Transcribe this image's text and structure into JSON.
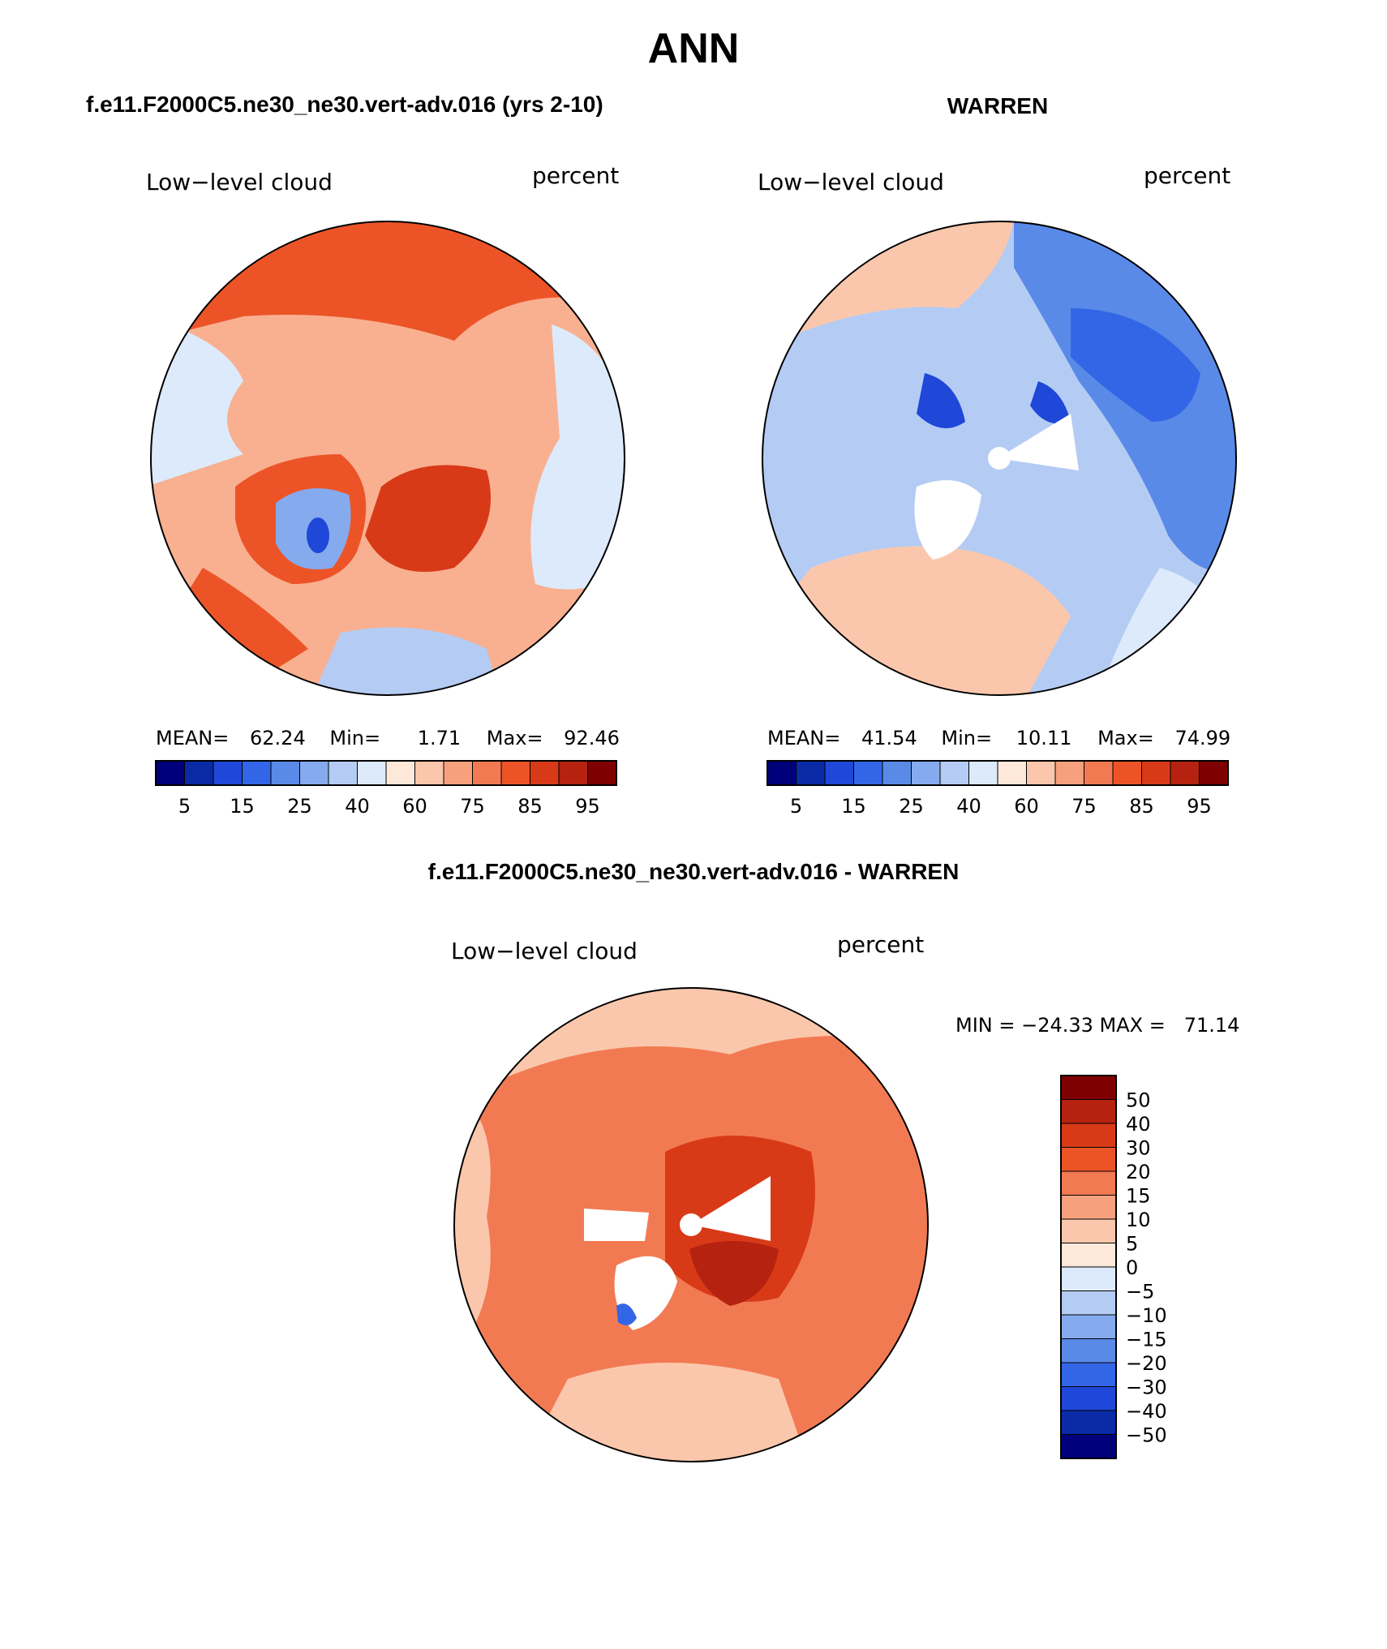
{
  "figure_title": "ANN",
  "panels": [
    {
      "title": "f.e11.F2000C5.ne30_ne30.vert-adv.016 (yrs 2-10)",
      "variable": "Low−level cloud",
      "units": "percent",
      "stats": {
        "mean_label": "MEAN=",
        "mean": "62.24",
        "min_label": "Min=",
        "min": "1.71",
        "max_label": "Max=",
        "max": "92.46"
      }
    },
    {
      "title": "WARREN",
      "variable": "Low−level cloud",
      "units": "percent",
      "stats": {
        "mean_label": "MEAN=",
        "mean": "41.54",
        "min_label": "Min=",
        "min": "10.11",
        "max_label": "Max=",
        "max": "74.99"
      }
    },
    {
      "title": "f.e11.F2000C5.ne30_ne30.vert-adv.016 - WARREN",
      "variable": "Low−level cloud",
      "units": "percent",
      "stats_text": "MIN = −24.33 MAX =   71.14"
    }
  ],
  "colorbar_abs": {
    "tick_labels": [
      "5",
      "15",
      "25",
      "40",
      "60",
      "75",
      "85",
      "95"
    ],
    "colors": [
      "#00007a",
      "#0a2aa6",
      "#1f48d8",
      "#3366e6",
      "#5a8ae8",
      "#86aaee",
      "#b4ccf4",
      "#ddeafb",
      "#fde8da",
      "#fbc7ac",
      "#f7a07e",
      "#f27a52",
      "#ec5428",
      "#d83a18",
      "#b52210",
      "#7f0000"
    ]
  },
  "colorbar_diff": {
    "tick_labels": [
      "50",
      "40",
      "30",
      "20",
      "15",
      "10",
      "5",
      "0",
      "−5",
      "−10",
      "−15",
      "−20",
      "−30",
      "−40",
      "−50"
    ],
    "colors": [
      "#7f0000",
      "#b52210",
      "#d83a18",
      "#ec5428",
      "#f27a52",
      "#f7a07e",
      "#fbc7ac",
      "#fde8da",
      "#ddeafb",
      "#b4ccf4",
      "#86aaee",
      "#5a8ae8",
      "#3366e6",
      "#1f48d8",
      "#0a2aa6",
      "#00007a"
    ]
  },
  "map_fill": {
    "panel1": "#f9b090",
    "panel2": "#b4ccf4",
    "panel3": "#f27a52"
  }
}
